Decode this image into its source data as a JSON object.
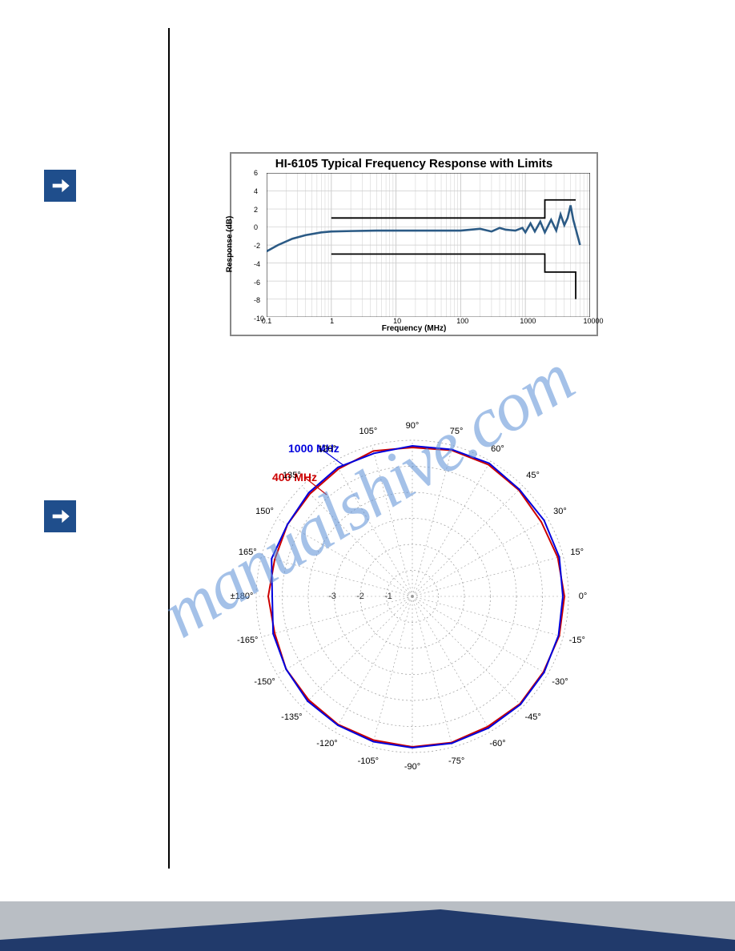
{
  "freq_chart": {
    "title": "HI-6105 Typical Frequency Response with Limits",
    "ylabel": "Response (dB)",
    "xlabel": "Frequency (MHz)",
    "ytick_labels": [
      "6",
      "4",
      "2",
      "0",
      "-2",
      "-4",
      "-6",
      "-8",
      "-10"
    ],
    "xtick_labels": [
      "0.1",
      "1",
      "10",
      "100",
      "1000",
      "10000"
    ],
    "response_color": "#2b5a85",
    "limit_color": "#000000",
    "grid_color": "#cccccc",
    "bg": "#ffffff",
    "ylim": [
      -10,
      6
    ],
    "xlim_log": [
      0.1,
      10000
    ],
    "response_line": [
      [
        0.1,
        -2.7
      ],
      [
        0.15,
        -2.0
      ],
      [
        0.25,
        -1.3
      ],
      [
        0.4,
        -0.9
      ],
      [
        0.7,
        -0.6
      ],
      [
        1,
        -0.5
      ],
      [
        2,
        -0.45
      ],
      [
        5,
        -0.4
      ],
      [
        10,
        -0.4
      ],
      [
        30,
        -0.4
      ],
      [
        80,
        -0.4
      ],
      [
        100,
        -0.4
      ],
      [
        200,
        -0.2
      ],
      [
        300,
        -0.5
      ],
      [
        400,
        -0.1
      ],
      [
        500,
        -0.3
      ],
      [
        700,
        -0.4
      ],
      [
        900,
        -0.1
      ],
      [
        1000,
        -0.6
      ],
      [
        1200,
        0.4
      ],
      [
        1400,
        -0.5
      ],
      [
        1700,
        0.6
      ],
      [
        2000,
        -0.6
      ],
      [
        2500,
        0.8
      ],
      [
        3000,
        -0.4
      ],
      [
        3500,
        1.4
      ],
      [
        4000,
        0.2
      ],
      [
        4500,
        1.0
      ],
      [
        5000,
        2.4
      ],
      [
        5500,
        0.8
      ],
      [
        6000,
        -0.2
      ],
      [
        7000,
        -2.0
      ]
    ],
    "upper_limit": [
      [
        1,
        1
      ],
      [
        1000,
        1
      ],
      [
        1000,
        1
      ],
      [
        2000,
        1
      ],
      [
        2000,
        3
      ],
      [
        6000,
        3
      ],
      [
        6000,
        3
      ]
    ],
    "lower_limit": [
      [
        1,
        -3
      ],
      [
        1000,
        -3
      ],
      [
        1000,
        -3
      ],
      [
        2000,
        -3
      ],
      [
        2000,
        -5
      ],
      [
        6000,
        -5
      ],
      [
        6000,
        -8
      ]
    ]
  },
  "polar_chart": {
    "legend_1000": "1000 MHz",
    "legend_400": "400 MHz",
    "color_1000": "#0000dd",
    "color_400": "#cc0000",
    "grid_color": "#999999",
    "angle_labels": [
      "0°",
      "15°",
      "30°",
      "45°",
      "60°",
      "75°",
      "90°",
      "105°",
      "120°",
      "135°",
      "150°",
      "165°",
      "±180°",
      "-165°",
      "-150°",
      "-135°",
      "-120°",
      "-105°",
      "-90°",
      "-75°",
      "-60°",
      "-45°",
      "-30°",
      "-15°"
    ],
    "radial_labels": [
      "-1",
      "-2",
      "-3"
    ],
    "rings": 6,
    "outer_radius": 195,
    "line_width": 2,
    "data_radius_1000": [
      188,
      190,
      190,
      189,
      192,
      190,
      188,
      185,
      186,
      183,
      180,
      182,
      175,
      180,
      182,
      185,
      186,
      188,
      189,
      190,
      190,
      191,
      190,
      189
    ],
    "data_radius_400": [
      190,
      188,
      186,
      188,
      190,
      189,
      186,
      188,
      184,
      181,
      180,
      178,
      180,
      178,
      182,
      183,
      185,
      186,
      188,
      189,
      188,
      190,
      189,
      190
    ]
  },
  "watermark": "manualshive.com",
  "arrow_color": "#ffffff",
  "arrow_bg": "#1f4e8c",
  "footer": {
    "grey": "#b9bec4",
    "blue": "#213a6b"
  }
}
